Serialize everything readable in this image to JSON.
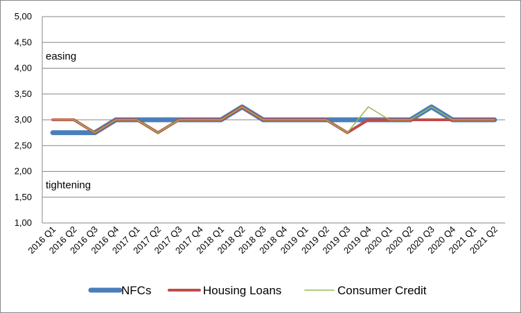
{
  "chart_data": {
    "type": "line",
    "title": "",
    "xlabel": "",
    "ylabel": "",
    "ylim": [
      1.0,
      5.0
    ],
    "ytick_step": 0.5,
    "ytick_labels": [
      "1,00",
      "1,50",
      "2,00",
      "2,50",
      "3,00",
      "3,50",
      "4,00",
      "4,50",
      "5,00"
    ],
    "grid": true,
    "legend_position": "bottom",
    "categories": [
      "2016 Q1",
      "2016 Q2",
      "2016 Q3",
      "2016 Q4",
      "2017 Q1",
      "2017 Q2",
      "2017 Q3",
      "2017 Q4",
      "2018 Q1",
      "2018 Q2",
      "2018 Q3",
      "2018 Q4",
      "2019 Q1",
      "2019 Q2",
      "2019 Q3",
      "2019 Q4",
      "2020 Q1",
      "2020 Q2",
      "2020 Q3",
      "2020 Q4",
      "2021 Q1",
      "2021 Q2"
    ],
    "series": [
      {
        "name": "NFCs",
        "color": "#4a7ebb",
        "values": [
          2.75,
          2.75,
          2.75,
          3.0,
          3.0,
          3.0,
          3.0,
          3.0,
          3.0,
          3.25,
          3.0,
          3.0,
          3.0,
          3.0,
          3.0,
          3.0,
          3.0,
          3.0,
          3.25,
          3.0,
          3.0,
          3.0
        ]
      },
      {
        "name": "Housing Loans",
        "color": "#be4b48",
        "values": [
          3.0,
          3.0,
          2.75,
          3.0,
          3.0,
          2.75,
          3.0,
          3.0,
          3.0,
          3.25,
          3.0,
          3.0,
          3.0,
          3.0,
          2.75,
          3.0,
          3.0,
          3.0,
          3.0,
          3.0,
          3.0,
          3.0
        ]
      },
      {
        "name": "Consumer Credit",
        "color": "#98b954",
        "values": [
          3.0,
          3.0,
          2.75,
          3.0,
          3.0,
          2.75,
          3.0,
          3.0,
          3.0,
          3.25,
          3.0,
          3.0,
          3.0,
          3.0,
          2.75,
          3.25,
          3.0,
          3.0,
          3.25,
          3.0,
          3.0,
          3.0
        ]
      }
    ],
    "annotations": [
      {
        "text": "easing",
        "y": 4.25
      },
      {
        "text": "tightening",
        "y": 1.75
      }
    ]
  }
}
